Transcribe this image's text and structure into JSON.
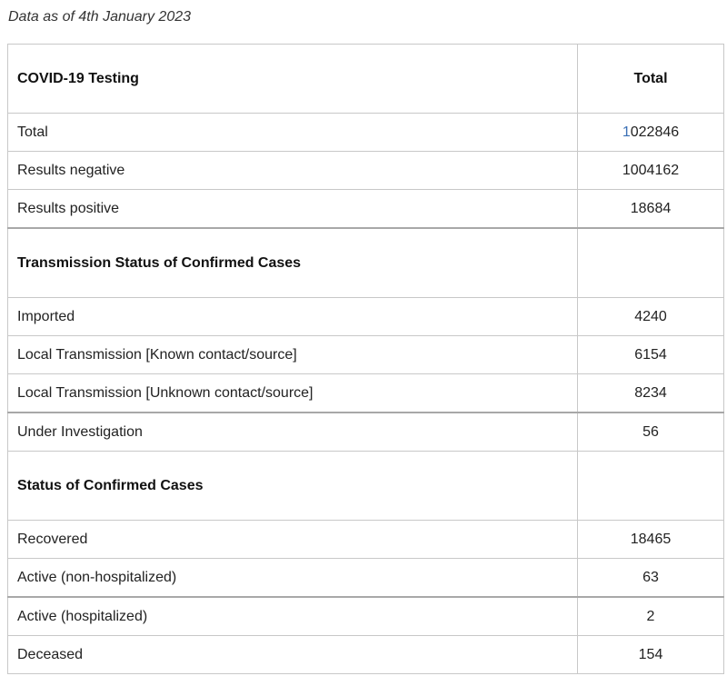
{
  "as_of": "Data as of 4th January 2023",
  "table": {
    "header": {
      "label": "COVID-19 Testing",
      "value_header": "Total"
    },
    "testing_rows": [
      {
        "label": "Total",
        "value": "1022846"
      },
      {
        "label": "Results negative",
        "value": "1004162"
      },
      {
        "label": "Results positive",
        "value": "18684"
      }
    ],
    "transmission_heading": "Transmission Status of Confirmed Cases",
    "transmission_rows": [
      {
        "label": "Imported",
        "value": "4240"
      },
      {
        "label": "Local Transmission [Known contact/source]",
        "value": "6154"
      },
      {
        "label": "Local Transmission [Unknown contact/source]",
        "value": "8234"
      },
      {
        "label": "Under Investigation",
        "value": "56"
      }
    ],
    "status_heading": "Status of Confirmed Cases",
    "status_rows": [
      {
        "label": "Recovered",
        "value": "18465"
      },
      {
        "label": "Active (non-hospitalized)",
        "value": "63"
      },
      {
        "label": "Active (hospitalized)",
        "value": "2"
      },
      {
        "label": "Deceased",
        "value": "154"
      }
    ]
  }
}
